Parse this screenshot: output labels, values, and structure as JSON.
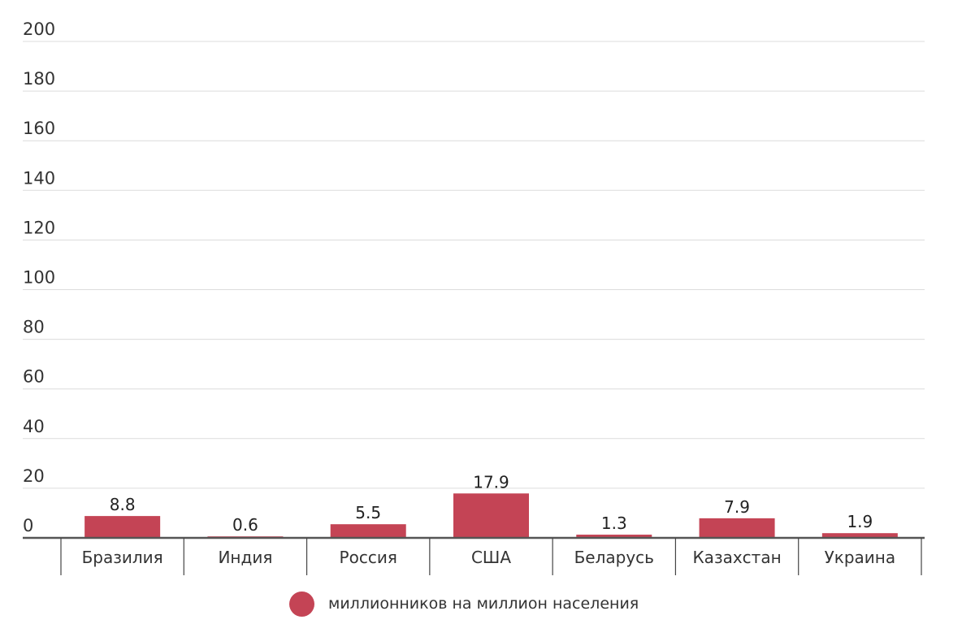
{
  "chart_data": {
    "type": "bar",
    "categories": [
      "Бразилия",
      "Индия",
      "Россия",
      "США",
      "Беларусь",
      "Казахстан",
      "Украина"
    ],
    "series": [
      {
        "name": "миллионников на миллион населения",
        "values": [
          8.8,
          0.6,
          5.5,
          17.9,
          1.3,
          7.9,
          1.9
        ]
      }
    ],
    "ylim": [
      0,
      200
    ],
    "yticks": [
      0,
      20,
      40,
      60,
      80,
      100,
      120,
      140,
      160,
      180,
      200
    ],
    "grid": true,
    "legend_position": "bottom",
    "bar_color": "#c44455"
  }
}
